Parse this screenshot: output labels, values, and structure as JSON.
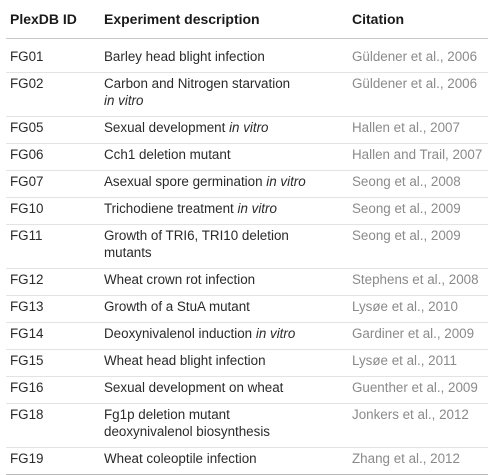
{
  "table": {
    "headers": {
      "id": "PlexDB ID",
      "description": "Experiment description",
      "citation": "Citation"
    },
    "rows": [
      {
        "id": "FG01",
        "desc_lines": [
          {
            "text": "Barley head blight infection",
            "italic": ""
          }
        ],
        "citation": "Güldener et al., 2006"
      },
      {
        "id": "FG02",
        "desc_lines": [
          {
            "text": "Carbon and Nitrogen starvation",
            "italic": ""
          },
          {
            "text": "",
            "italic": "in vitro"
          }
        ],
        "citation": "Güldener et al., 2006"
      },
      {
        "id": "FG05",
        "desc_lines": [
          {
            "text": "Sexual development ",
            "italic": "in vitro"
          }
        ],
        "citation": "Hallen et al., 2007"
      },
      {
        "id": "FG06",
        "desc_lines": [
          {
            "text": "Cch1 deletion mutant",
            "italic": ""
          }
        ],
        "citation": "Hallen and Trail, 2007"
      },
      {
        "id": "FG07",
        "desc_lines": [
          {
            "text": "Asexual spore germination ",
            "italic": "in vitro"
          }
        ],
        "citation": "Seong et al., 2008"
      },
      {
        "id": "FG10",
        "desc_lines": [
          {
            "text": "Trichodiene treatment ",
            "italic": "in vitro"
          }
        ],
        "citation": "Seong et al., 2009"
      },
      {
        "id": "FG11",
        "desc_lines": [
          {
            "text": "Growth of TRI6, TRI10 deletion",
            "italic": ""
          },
          {
            "text": "mutants",
            "italic": ""
          }
        ],
        "citation": "Seong et al., 2009"
      },
      {
        "id": "FG12",
        "desc_lines": [
          {
            "text": "Wheat crown rot infection",
            "italic": ""
          }
        ],
        "citation": "Stephens et al., 2008"
      },
      {
        "id": "FG13",
        "desc_lines": [
          {
            "text": "Growth of a StuA mutant",
            "italic": ""
          }
        ],
        "citation": "Lysøe et al., 2010"
      },
      {
        "id": "FG14",
        "desc_lines": [
          {
            "text": "Deoxynivalenol induction ",
            "italic": "in vitro"
          }
        ],
        "citation": "Gardiner et al., 2009"
      },
      {
        "id": "FG15",
        "desc_lines": [
          {
            "text": "Wheat head blight infection",
            "italic": ""
          }
        ],
        "citation": "Lysøe et al., 2011"
      },
      {
        "id": "FG16",
        "desc_lines": [
          {
            "text": "Sexual development on wheat",
            "italic": ""
          }
        ],
        "citation": "Guenther et al., 2009"
      },
      {
        "id": "FG18",
        "desc_lines": [
          {
            "text": "Fg1p deletion mutant",
            "italic": ""
          },
          {
            "text": "deoxynivalenol biosynthesis",
            "italic": ""
          }
        ],
        "citation": "Jonkers et al., 2012"
      },
      {
        "id": "FG19",
        "desc_lines": [
          {
            "text": "Wheat coleoptile infection",
            "italic": ""
          }
        ],
        "citation": "Zhang et al., 2012"
      }
    ]
  }
}
